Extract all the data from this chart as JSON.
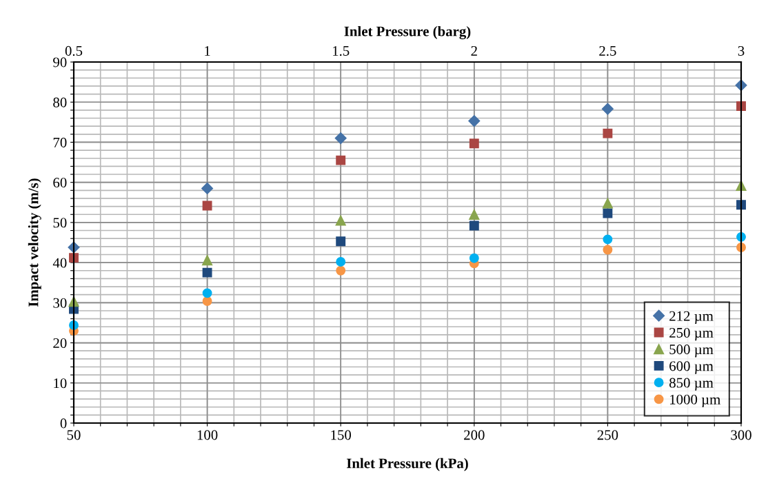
{
  "chart_data": {
    "type": "scatter",
    "xlabel": "Inlet Pressure (kPa)",
    "x2label": "Inlet Pressure (barg)",
    "ylabel": "Impact velocity (m/s)",
    "x": [
      50,
      100,
      150,
      200,
      250,
      300
    ],
    "series": [
      {
        "name": "212 µm",
        "color": "#4572a7",
        "marker": "diamond",
        "values": [
          43.8,
          58.5,
          71.0,
          75.3,
          78.3,
          84.2
        ]
      },
      {
        "name": "250 µm",
        "color": "#aa4643",
        "marker": "square",
        "values": [
          41.2,
          54.2,
          65.5,
          69.7,
          72.2,
          79.0
        ]
      },
      {
        "name": "500 µm",
        "color": "#89a54e",
        "marker": "triangle",
        "values": [
          30.3,
          40.6,
          50.5,
          52.0,
          54.8,
          59.2
        ]
      },
      {
        "name": "600 µm",
        "color": "#1f497d",
        "marker": "square",
        "values": [
          28.4,
          37.5,
          45.3,
          49.2,
          52.3,
          54.4
        ]
      },
      {
        "name": "850 µm",
        "color": "#00b0f0",
        "marker": "circle",
        "values": [
          24.4,
          32.4,
          40.2,
          41.1,
          45.8,
          46.4
        ]
      },
      {
        "name": "1000 µm",
        "color": "#f79646",
        "marker": "circle",
        "values": [
          23.0,
          30.4,
          38.0,
          39.8,
          43.2,
          43.8
        ]
      }
    ],
    "xlim": [
      50,
      300
    ],
    "xticks": [
      50,
      {
        "value": 60,
        "label": null
      },
      {
        "value": 70,
        "label": null
      },
      {
        "value": 80,
        "label": null
      },
      {
        "value": 90,
        "label": null
      },
      100,
      {
        "value": 110,
        "label": null
      },
      {
        "value": 120,
        "label": null
      },
      {
        "value": 130,
        "label": null
      },
      {
        "value": 140,
        "label": null
      },
      150,
      {
        "value": 160,
        "label": null
      },
      {
        "value": 170,
        "label": null
      },
      {
        "value": 180,
        "label": null
      },
      {
        "value": 190,
        "label": null
      },
      200,
      {
        "value": 210,
        "label": null
      },
      {
        "value": 220,
        "label": null
      },
      {
        "value": 230,
        "label": null
      },
      {
        "value": 240,
        "label": null
      },
      250,
      {
        "value": 260,
        "label": null
      },
      {
        "value": 270,
        "label": null
      },
      {
        "value": 280,
        "label": null
      },
      {
        "value": 290,
        "label": null
      },
      300
    ],
    "x2lim": [
      0.5,
      3
    ],
    "x2ticks": [
      0.5,
      1,
      1.5,
      2,
      2.5,
      3
    ],
    "ylim": [
      0,
      90
    ],
    "yticks": [
      0,
      {
        "value": 2,
        "label": null
      },
      {
        "value": 4,
        "label": null
      },
      {
        "value": 6,
        "label": null
      },
      {
        "value": 8,
        "label": null
      },
      10,
      {
        "value": 12,
        "label": null
      },
      {
        "value": 14,
        "label": null
      },
      {
        "value": 16,
        "label": null
      },
      {
        "value": 18,
        "label": null
      },
      20,
      {
        "value": 22,
        "label": null
      },
      {
        "value": 24,
        "label": null
      },
      {
        "value": 26,
        "label": null
      },
      {
        "value": 28,
        "label": null
      },
      30,
      {
        "value": 32,
        "label": null
      },
      {
        "value": 34,
        "label": null
      },
      {
        "value": 36,
        "label": null
      },
      {
        "value": 38,
        "label": null
      },
      40,
      {
        "value": 42,
        "label": null
      },
      {
        "value": 44,
        "label": null
      },
      {
        "value": 46,
        "label": null
      },
      {
        "value": 48,
        "label": null
      },
      50,
      {
        "value": 52,
        "label": null
      },
      {
        "value": 54,
        "label": null
      },
      {
        "value": 56,
        "label": null
      },
      {
        "value": 58,
        "label": null
      },
      60,
      {
        "value": 62,
        "label": null
      },
      {
        "value": 64,
        "label": null
      },
      {
        "value": 66,
        "label": null
      },
      {
        "value": 68,
        "label": null
      },
      70,
      {
        "value": 72,
        "label": null
      },
      {
        "value": 74,
        "label": null
      },
      {
        "value": 76,
        "label": null
      },
      {
        "value": 78,
        "label": null
      },
      80,
      {
        "value": 82,
        "label": null
      },
      {
        "value": 84,
        "label": null
      },
      {
        "value": 86,
        "label": null
      },
      {
        "value": 88,
        "label": null
      },
      90
    ],
    "grid": true,
    "legend": "bottom right"
  }
}
